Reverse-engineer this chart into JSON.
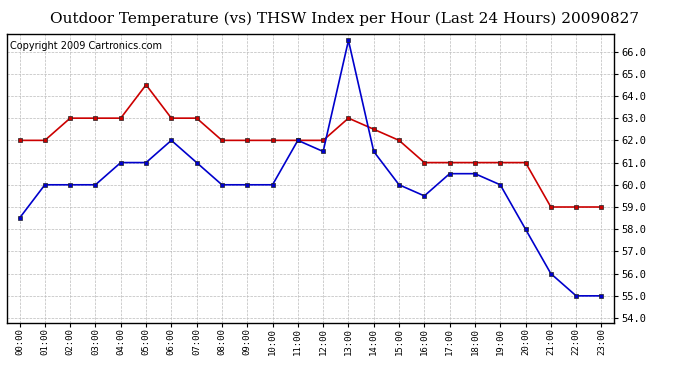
{
  "title": "Outdoor Temperature (vs) THSW Index per Hour (Last 24 Hours) 20090827",
  "copyright": "Copyright 2009 Cartronics.com",
  "hours": [
    "00:00",
    "01:00",
    "02:00",
    "03:00",
    "04:00",
    "05:00",
    "06:00",
    "07:00",
    "08:00",
    "09:00",
    "10:00",
    "11:00",
    "12:00",
    "13:00",
    "14:00",
    "15:00",
    "16:00",
    "17:00",
    "18:00",
    "19:00",
    "20:00",
    "21:00",
    "22:00",
    "23:00"
  ],
  "temp_red": [
    62.0,
    62.0,
    63.0,
    63.0,
    63.0,
    64.5,
    63.0,
    63.0,
    62.0,
    62.0,
    62.0,
    62.0,
    62.0,
    63.0,
    62.5,
    62.0,
    61.0,
    61.0,
    61.0,
    61.0,
    61.0,
    59.0,
    59.0,
    59.0
  ],
  "thsw_blue": [
    58.5,
    60.0,
    60.0,
    60.0,
    61.0,
    61.0,
    62.0,
    61.0,
    60.0,
    60.0,
    60.0,
    62.0,
    61.5,
    66.5,
    61.5,
    60.0,
    59.5,
    60.5,
    60.5,
    60.0,
    58.0,
    56.0,
    55.0,
    55.0
  ],
  "ylim_min": 53.8,
  "ylim_max": 66.8,
  "yticks": [
    54.0,
    55.0,
    56.0,
    57.0,
    58.0,
    59.0,
    60.0,
    61.0,
    62.0,
    63.0,
    64.0,
    65.0,
    66.0
  ],
  "red_color": "#cc0000",
  "blue_color": "#0000cc",
  "grid_color": "#bbbbbb",
  "bg_color": "#ffffff",
  "title_fontsize": 11,
  "copyright_fontsize": 7
}
